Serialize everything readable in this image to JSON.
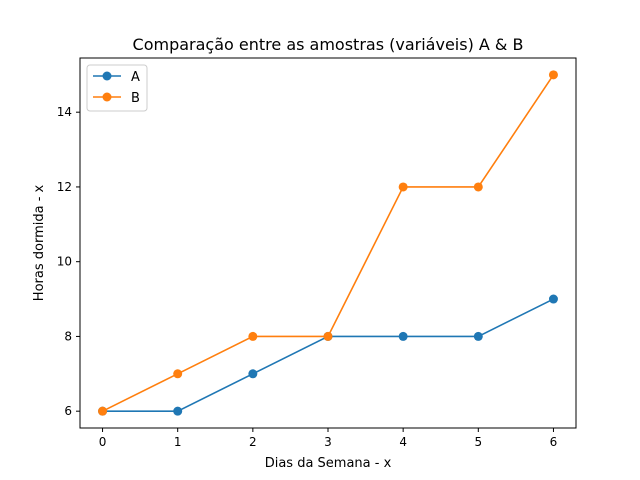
{
  "chart_data": {
    "type": "line",
    "title": "Comparação entre as amostras (variáveis) A & B",
    "xlabel": "Dias da Semana - x",
    "ylabel": "Horas dormida - x",
    "x": [
      0,
      1,
      2,
      3,
      4,
      5,
      6
    ],
    "xlim": [
      -0.3,
      6.3
    ],
    "ylim": [
      5.55,
      15.45
    ],
    "xticks": [
      "0",
      "1",
      "2",
      "3",
      "4",
      "5",
      "6"
    ],
    "yticks": [
      "6",
      "8",
      "10",
      "12",
      "14"
    ],
    "grid": false,
    "legend_position": "upper-left",
    "series": [
      {
        "name": "A",
        "color": "#1f77b4",
        "values": [
          6,
          6,
          7,
          8,
          8,
          8,
          9
        ]
      },
      {
        "name": "B",
        "color": "#ff7f0e",
        "values": [
          6,
          7,
          8,
          8,
          12,
          12,
          15
        ]
      }
    ]
  }
}
